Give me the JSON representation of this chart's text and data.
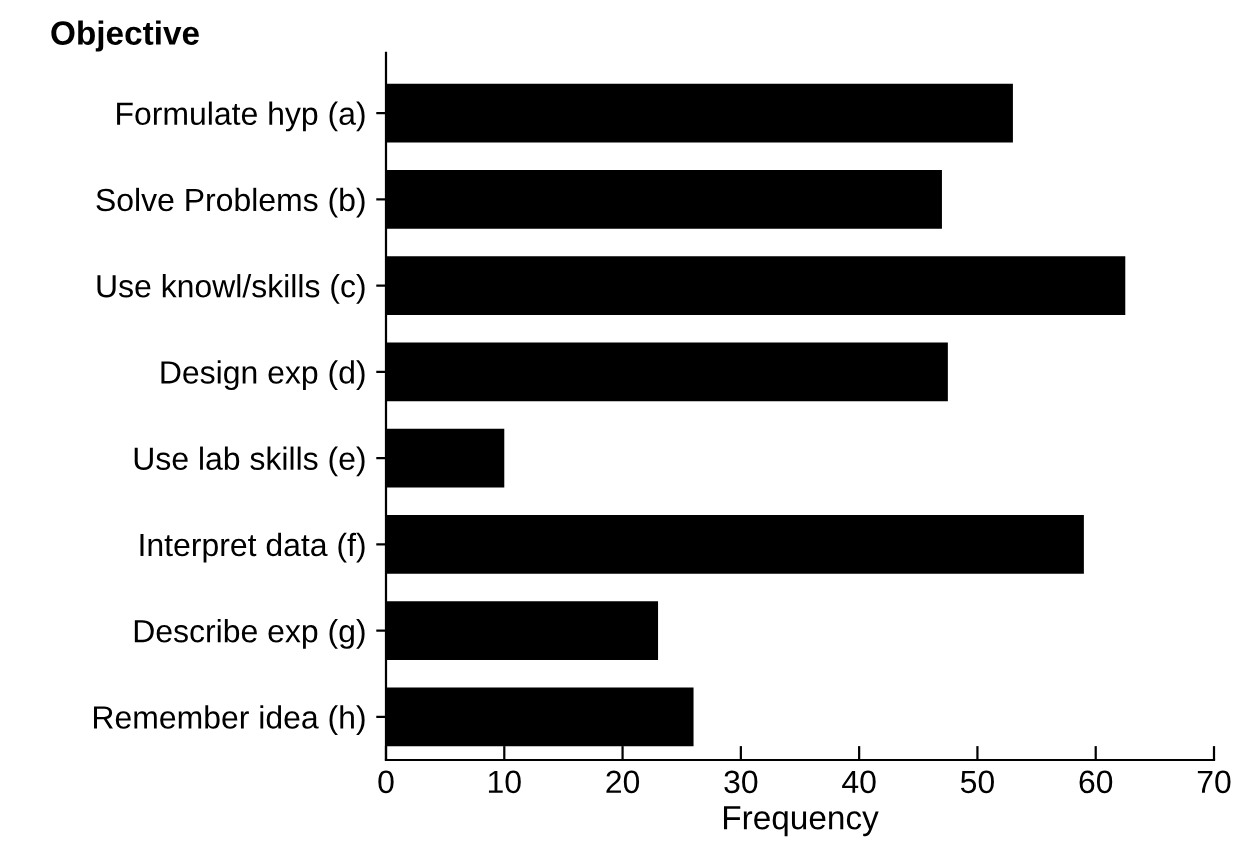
{
  "chart_data": {
    "type": "bar",
    "orientation": "horizontal",
    "title": "Objective",
    "xlabel": "Frequency",
    "categories": [
      "Formulate hyp (a)",
      "Solve Problems (b)",
      "Use knowl/skills (c)",
      "Design exp (d)",
      "Use lab skills (e)",
      "Interpret data (f)",
      "Describe exp (g)",
      "Remember idea (h)"
    ],
    "values": [
      53,
      47,
      62.5,
      47.5,
      10,
      59,
      23,
      26
    ],
    "color": "#000000",
    "xlim": [
      0,
      70
    ],
    "xticks": [
      0,
      10,
      20,
      30,
      40,
      50,
      60,
      70
    ],
    "grid": false,
    "legend": false
  }
}
